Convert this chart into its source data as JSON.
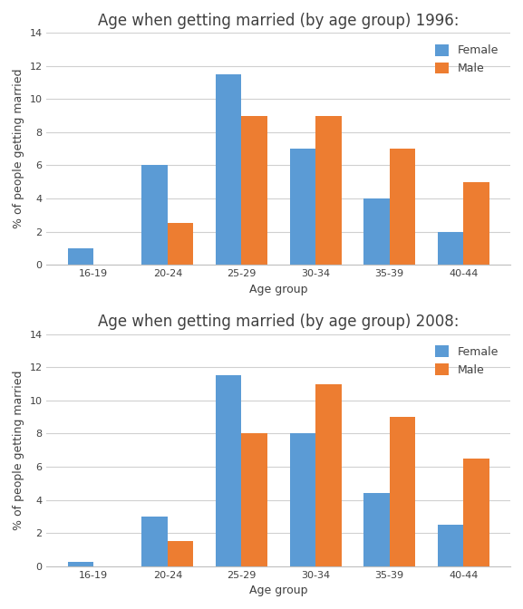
{
  "categories": [
    "16-19",
    "20-24",
    "25-29",
    "30-34",
    "35-39",
    "40-44"
  ],
  "chart1": {
    "title": "Age when getting married (by age group) 1996:",
    "female": [
      1.0,
      6.0,
      11.5,
      7.0,
      4.0,
      2.0
    ],
    "male": [
      0.0,
      2.5,
      9.0,
      9.0,
      7.0,
      5.0
    ]
  },
  "chart2": {
    "title": "Age when getting married (by age group) 2008:",
    "female": [
      0.25,
      3.0,
      11.5,
      8.0,
      4.4,
      2.5
    ],
    "male": [
      0.0,
      1.5,
      8.0,
      11.0,
      9.0,
      6.5
    ]
  },
  "female_color": "#5B9BD5",
  "male_color": "#ED7D31",
  "xlabel": "Age group",
  "ylabel": "% of people getting married",
  "ylim": [
    0,
    14
  ],
  "yticks": [
    0,
    2,
    4,
    6,
    8,
    10,
    12,
    14
  ],
  "bar_width": 0.35,
  "title_fontsize": 12,
  "axis_label_fontsize": 9,
  "tick_fontsize": 8,
  "legend_fontsize": 9,
  "background_color": "#ffffff",
  "grid_color": "#d0d0d0"
}
